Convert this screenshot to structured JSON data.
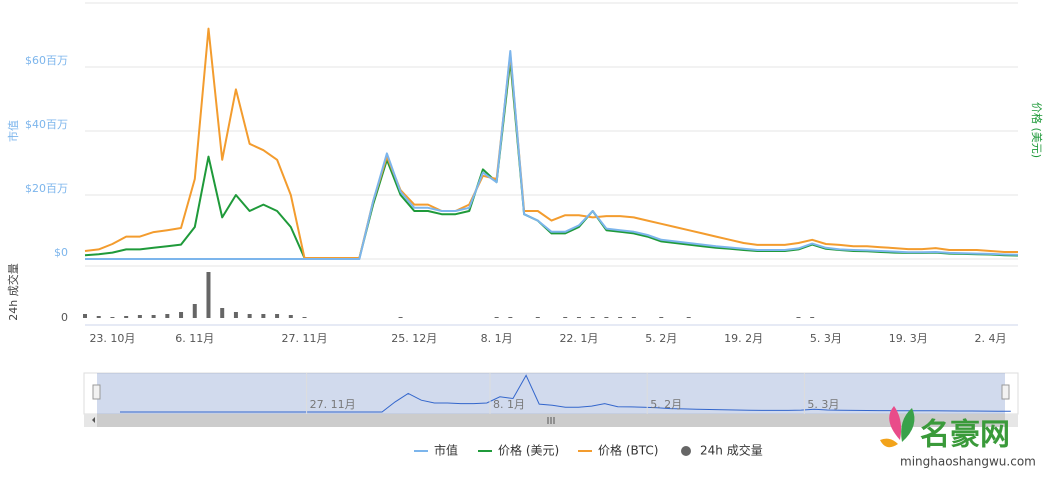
{
  "chart_data": {
    "type": "line",
    "y_label": "市值",
    "y2_label": "价格 (美元)",
    "categories": [
      null,
      null,
      "23. 10月",
      null,
      null,
      null,
      null,
      null,
      "6. 11月",
      null,
      null,
      null,
      null,
      null,
      null,
      null,
      "27. 11月",
      null,
      null,
      null,
      null,
      null,
      null,
      null,
      "25. 12月",
      null,
      null,
      null,
      null,
      null,
      "8. 1月",
      null,
      null,
      null,
      null,
      null,
      "22. 1月",
      null,
      null,
      null,
      null,
      null,
      "5. 2月",
      null,
      null,
      null,
      null,
      null,
      "19. 2月",
      null,
      null,
      null,
      null,
      null,
      "5. 3月",
      null,
      null,
      null,
      null,
      null,
      "19. 3月",
      null,
      null,
      null,
      null,
      null,
      "2. 4月",
      null,
      null
    ],
    "ylim": [
      0,
      80
    ],
    "yticks": [
      {
        "value": 0,
        "label": "$0"
      },
      {
        "value": 20,
        "label": "$20百万"
      },
      {
        "value": 40,
        "label": "$40百万"
      },
      {
        "value": 60,
        "label": "$60百万"
      }
    ],
    "y2lim": [
      0,
      80
    ],
    "grid": true,
    "series": [
      {
        "name": "价格 (美元)",
        "color": "#1f9a3a",
        "axis": "y2",
        "values": [
          1.2,
          1.5,
          2,
          3,
          3,
          3.5,
          4,
          4.5,
          10,
          32,
          13,
          20,
          15,
          17,
          15,
          10,
          0.3,
          0.3,
          0.3,
          0.3,
          0.3,
          17,
          31,
          20,
          15,
          15,
          14,
          14,
          15,
          28,
          24,
          62,
          14,
          12,
          8,
          8,
          10,
          15,
          9,
          8.5,
          8,
          7,
          5.5,
          5,
          4.5,
          4,
          3.5,
          3.2,
          2.8,
          2.5,
          2.5,
          2.5,
          3,
          4.5,
          3.2,
          2.8,
          2.5,
          2.4,
          2.2,
          2,
          1.9,
          1.9,
          2,
          1.7,
          1.6,
          1.5,
          1.4,
          1.2,
          1.1
        ]
      },
      {
        "name": "价格 (BTC)",
        "color": "#f39c2e",
        "axis": "y2",
        "values": [
          2.5,
          3,
          4.7,
          7,
          7,
          8.4,
          9,
          9.7,
          25,
          72,
          31,
          53,
          36,
          34,
          31,
          20,
          0.3,
          0.3,
          0.3,
          0.3,
          0.3,
          18,
          32,
          21.5,
          17,
          17,
          15,
          15,
          17,
          26,
          25,
          64,
          15,
          15,
          12,
          13.7,
          13.7,
          13,
          13.4,
          13.4,
          13,
          12,
          11,
          10,
          9,
          8,
          7,
          6,
          5,
          4.4,
          4.4,
          4.4,
          5,
          6,
          4.7,
          4.4,
          4,
          4,
          3.7,
          3.4,
          3.1,
          3.1,
          3.4,
          2.8,
          2.8,
          2.8,
          2.5,
          2.2,
          2.2
        ]
      },
      {
        "name": "市值",
        "color": "#7cb5ec",
        "values": [
          0,
          0,
          0,
          0,
          0,
          0,
          0,
          0,
          0,
          0,
          0,
          0,
          0,
          0,
          0,
          0,
          0,
          0,
          0,
          0,
          0,
          18,
          33,
          21,
          16,
          16,
          15,
          15,
          16,
          27,
          24,
          65,
          14,
          12,
          8.5,
          8.5,
          10.5,
          15,
          9.5,
          9,
          8.5,
          7.5,
          6,
          5.5,
          5,
          4.5,
          4,
          3.6,
          3.2,
          2.8,
          2.8,
          2.8,
          3.3,
          4.8,
          3.5,
          3,
          2.8,
          2.7,
          2.5,
          2.3,
          2.1,
          2.1,
          2.2,
          1.9,
          1.8,
          1.7,
          1.6,
          1.4,
          1.3
        ]
      }
    ],
    "volume": {
      "name": "24h 成交量",
      "color": "#666666",
      "ylim": [
        0,
        50
      ],
      "yticks": [
        0
      ],
      "values": [
        4,
        2,
        1,
        2,
        3,
        3,
        4,
        6,
        14,
        46,
        10,
        6,
        4,
        4,
        4,
        3,
        1,
        0,
        0,
        0,
        0,
        0,
        0,
        1,
        0,
        0,
        0,
        0,
        0,
        0,
        1,
        1,
        0,
        1,
        0,
        1,
        1,
        1,
        1,
        1,
        1,
        0,
        1,
        0,
        1,
        0,
        0,
        0,
        0,
        0,
        0,
        0,
        1,
        1,
        0,
        0,
        0,
        0,
        0,
        0,
        0,
        0,
        0,
        0,
        0,
        0,
        0,
        0,
        0
      ]
    }
  },
  "watermark": {
    "text": "名豪网",
    "url": "minghaoshangwu.com"
  }
}
